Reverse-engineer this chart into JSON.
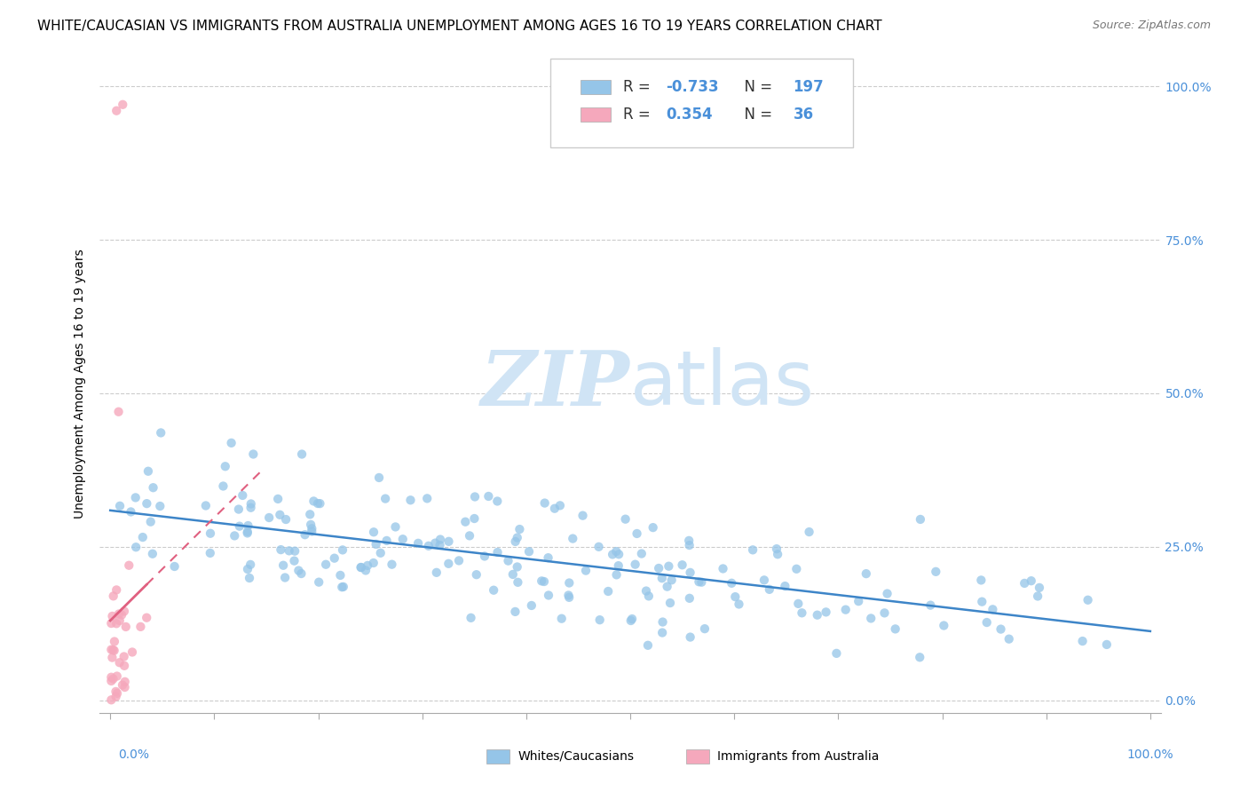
{
  "title": "WHITE/CAUCASIAN VS IMMIGRANTS FROM AUSTRALIA UNEMPLOYMENT AMONG AGES 16 TO 19 YEARS CORRELATION CHART",
  "source": "Source: ZipAtlas.com",
  "ylabel": "Unemployment Among Ages 16 to 19 years",
  "yticks_labels": [
    "0.0%",
    "25.0%",
    "50.0%",
    "75.0%",
    "100.0%"
  ],
  "ytick_vals": [
    0.0,
    0.25,
    0.5,
    0.75,
    1.0
  ],
  "blue_R": "-0.733",
  "blue_N": "197",
  "pink_R": "0.354",
  "pink_N": "36",
  "blue_color": "#95c5e8",
  "pink_color": "#f5a8bc",
  "blue_line_color": "#3d85c8",
  "pink_line_color": "#e06080",
  "watermark_color": "#d0e4f5",
  "legend_label_blue": "Whites/Caucasians",
  "legend_label_pink": "Immigrants from Australia",
  "title_fontsize": 11,
  "axis_label_fontsize": 10,
  "tick_fontsize": 10,
  "legend_fontsize": 12,
  "blue_scatter_seed": 42,
  "pink_scatter_seed": 99
}
